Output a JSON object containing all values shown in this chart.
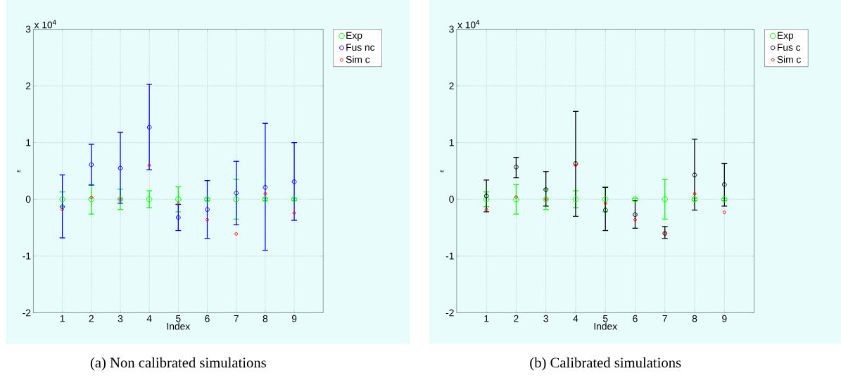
{
  "chart_data": [
    {
      "type": "scatter",
      "xlabel": "Index",
      "ylabel": "ε",
      "x": [
        1,
        2,
        3,
        4,
        5,
        6,
        7,
        8,
        9
      ],
      "xlim": [
        0,
        10
      ],
      "xticks": [
        1,
        2,
        3,
        4,
        5,
        6,
        7,
        8,
        9
      ],
      "ylim": [
        -2,
        3
      ],
      "yticks": [
        -2,
        -1,
        0,
        1,
        2,
        3
      ],
      "grid": true,
      "legend": "top right",
      "marker": "circle",
      "annotations": [
        "x 10$^{4}$",
        "(a) Non calibrated simulations"
      ],
      "series": [
        {
          "name": "Exp",
          "color": "#00ff00",
          "values": [
            0,
            0,
            0,
            0,
            0,
            0,
            0,
            0,
            0
          ],
          "errors": [
            0.13,
            0.26,
            0.18,
            0.15,
            0.22,
            0.02,
            0.35,
            0.02,
            0.02
          ]
        },
        {
          "name": "Fus nc",
          "color": "#0000ff",
          "values": [
            -0.13,
            0.61,
            0.55,
            1.27,
            -0.32,
            -0.18,
            0.11,
            0.21,
            0.31
          ],
          "errors": [
            [
              -0.68,
              0.43
            ],
            [
              0.25,
              0.97
            ],
            [
              -0.07,
              1.18
            ],
            [
              0.52,
              2.03
            ],
            [
              -0.55,
              -0.09
            ],
            [
              -0.69,
              0.33
            ],
            [
              -0.45,
              0.67
            ],
            [
              -0.9,
              1.34
            ],
            [
              -0.37,
              1.0
            ]
          ]
        },
        {
          "name": "Sim c",
          "color": "#ff0000",
          "values": [
            -0.18,
            0.03,
            0,
            0.6,
            -0.08,
            -0.36,
            -0.61,
            0.1,
            -0.24
          ]
        }
      ]
    },
    {
      "type": "scatter",
      "xlabel": "Index",
      "ylabel": "ε",
      "x": [
        1,
        2,
        3,
        4,
        5,
        6,
        7,
        8,
        9
      ],
      "xlim": [
        0,
        10
      ],
      "xticks": [
        1,
        2,
        3,
        4,
        5,
        6,
        7,
        8,
        9
      ],
      "ylim": [
        -2,
        3
      ],
      "yticks": [
        -2,
        -1,
        0,
        1,
        2,
        3
      ],
      "grid": true,
      "legend": "top right",
      "marker": "circle",
      "annotations": [
        "x 10$^{4}$",
        "(b) Calibrated simulations"
      ],
      "series": [
        {
          "name": "Exp",
          "color": "#00ff00",
          "values": [
            0,
            0,
            0,
            0,
            0,
            0,
            0,
            0,
            0
          ],
          "errors": [
            0.13,
            0.26,
            0.18,
            0.15,
            0.22,
            0.02,
            0.35,
            0.02,
            0.02
          ]
        },
        {
          "name": "Fus c",
          "color": "#000000",
          "values": [
            0.06,
            0.57,
            0.17,
            0.63,
            -0.19,
            -0.27,
            -0.6,
            0.43,
            0.26
          ],
          "errors": [
            [
              -0.22,
              0.34
            ],
            [
              0.38,
              0.74
            ],
            [
              -0.12,
              0.49
            ],
            [
              -0.3,
              1.55
            ],
            [
              -0.55,
              0.21
            ],
            [
              -0.51,
              -0.02
            ],
            [
              -0.69,
              -0.48
            ],
            [
              -0.19,
              1.06
            ],
            [
              -0.12,
              0.63
            ]
          ]
        },
        {
          "name": "Sim c",
          "color": "#ff0000",
          "values": [
            -0.18,
            0.04,
            0,
            0.6,
            -0.07,
            -0.36,
            -0.6,
            0.1,
            -0.23
          ]
        }
      ]
    }
  ]
}
